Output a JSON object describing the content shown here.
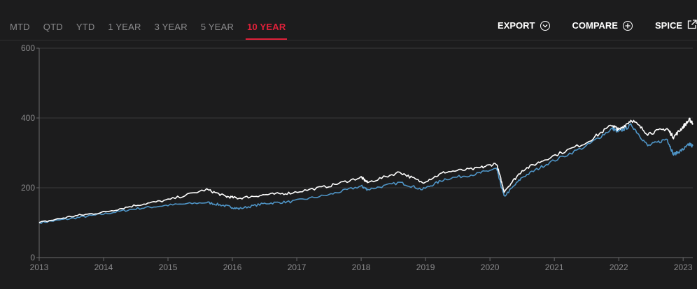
{
  "tabs": [
    {
      "label": "MTD",
      "active": false
    },
    {
      "label": "QTD",
      "active": false
    },
    {
      "label": "YTD",
      "active": false
    },
    {
      "label": "1 YEAR",
      "active": false
    },
    {
      "label": "3 YEAR",
      "active": false
    },
    {
      "label": "5 YEAR",
      "active": false
    },
    {
      "label": "10 YEAR",
      "active": true
    }
  ],
  "actions": {
    "export_label": "EXPORT",
    "compare_label": "COMPARE",
    "spice_label": "SPICE"
  },
  "colors": {
    "accent": "#e0213a",
    "series_white": "#ffffff",
    "series_blue": "#4f95c7",
    "grid": "#3a3a3c"
  },
  "chart_data": {
    "type": "line",
    "x_ticks": [
      "2013",
      "2014",
      "2015",
      "2016",
      "2017",
      "2018",
      "2019",
      "2020",
      "2021",
      "2022",
      "2023"
    ],
    "y_ticks": [
      0,
      200,
      400,
      600
    ],
    "ylim": [
      0,
      600
    ],
    "xlim": [
      2013.0,
      2023.15
    ],
    "series": [
      {
        "color": "#ffffff",
        "points": [
          [
            2013.0,
            100
          ],
          [
            2013.5,
            118
          ],
          [
            2014.0,
            130
          ],
          [
            2014.5,
            150
          ],
          [
            2015.0,
            165
          ],
          [
            2015.6,
            195
          ],
          [
            2015.9,
            175
          ],
          [
            2016.1,
            170
          ],
          [
            2016.5,
            180
          ],
          [
            2016.9,
            185
          ],
          [
            2017.5,
            205
          ],
          [
            2018.0,
            230
          ],
          [
            2018.1,
            215
          ],
          [
            2018.6,
            245
          ],
          [
            2018.95,
            215
          ],
          [
            2019.3,
            245
          ],
          [
            2019.8,
            255
          ],
          [
            2020.1,
            270
          ],
          [
            2020.22,
            190
          ],
          [
            2020.5,
            250
          ],
          [
            2020.9,
            285
          ],
          [
            2021.5,
            330
          ],
          [
            2021.9,
            380
          ],
          [
            2022.0,
            365
          ],
          [
            2022.2,
            395
          ],
          [
            2022.45,
            355
          ],
          [
            2022.75,
            370
          ],
          [
            2022.85,
            345
          ],
          [
            2023.0,
            375
          ],
          [
            2023.1,
            395
          ],
          [
            2023.15,
            385
          ]
        ]
      },
      {
        "color": "#4f95c7",
        "points": [
          [
            2013.0,
            100
          ],
          [
            2013.5,
            112
          ],
          [
            2014.0,
            125
          ],
          [
            2014.5,
            140
          ],
          [
            2015.0,
            150
          ],
          [
            2015.6,
            158
          ],
          [
            2015.9,
            148
          ],
          [
            2016.1,
            140
          ],
          [
            2016.5,
            155
          ],
          [
            2016.9,
            160
          ],
          [
            2017.5,
            180
          ],
          [
            2018.0,
            205
          ],
          [
            2018.1,
            195
          ],
          [
            2018.6,
            215
          ],
          [
            2018.95,
            195
          ],
          [
            2019.3,
            225
          ],
          [
            2019.8,
            240
          ],
          [
            2020.1,
            255
          ],
          [
            2020.22,
            175
          ],
          [
            2020.5,
            230
          ],
          [
            2020.9,
            270
          ],
          [
            2021.5,
            320
          ],
          [
            2021.9,
            370
          ],
          [
            2022.0,
            360
          ],
          [
            2022.2,
            380
          ],
          [
            2022.45,
            320
          ],
          [
            2022.75,
            340
          ],
          [
            2022.85,
            295
          ],
          [
            2023.0,
            310
          ],
          [
            2023.1,
            325
          ],
          [
            2023.15,
            320
          ]
        ]
      }
    ]
  }
}
